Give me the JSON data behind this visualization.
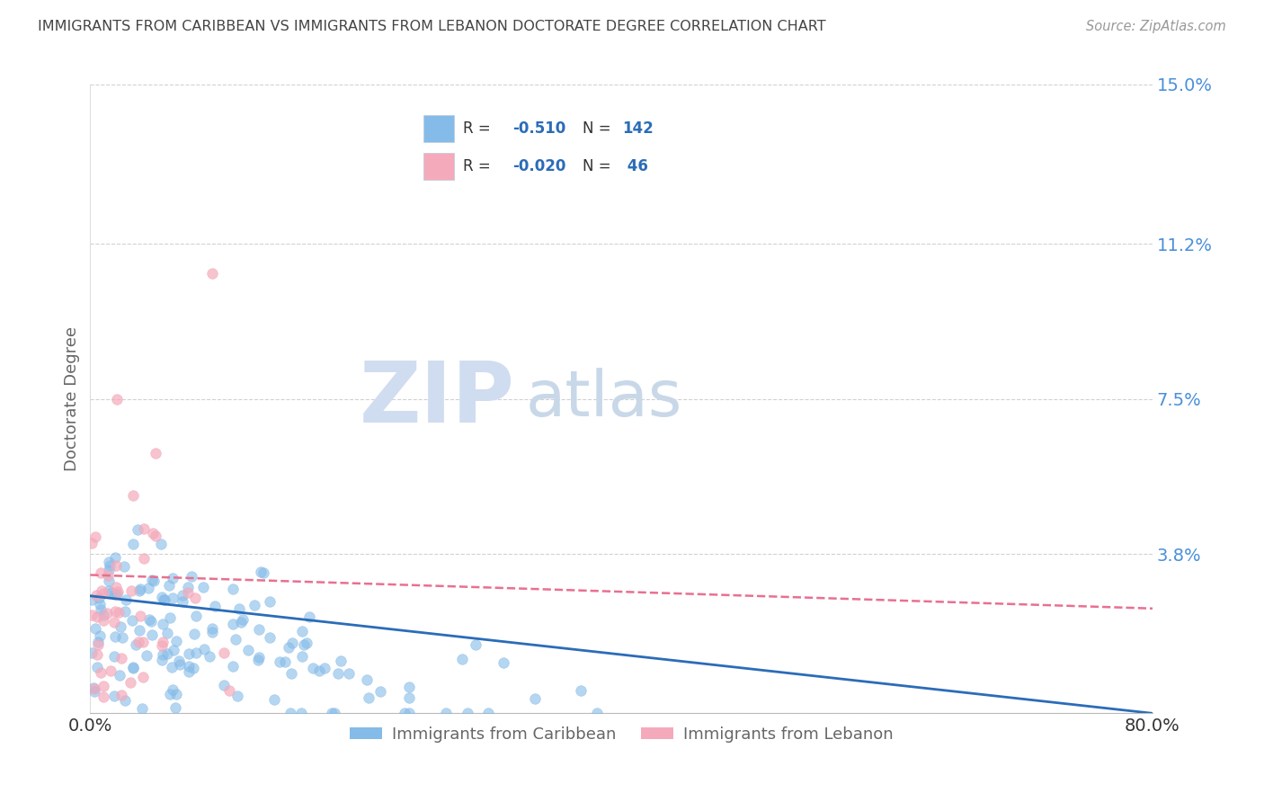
{
  "title": "IMMIGRANTS FROM CARIBBEAN VS IMMIGRANTS FROM LEBANON DOCTORATE DEGREE CORRELATION CHART",
  "source": "Source: ZipAtlas.com",
  "ylabel": "Doctorate Degree",
  "legend_label1": "Immigrants from Caribbean",
  "legend_label2": "Immigrants from Lebanon",
  "R1": -0.51,
  "N1": 142,
  "R2": -0.02,
  "N2": 46,
  "color1": "#85BBE8",
  "color2": "#F4AABB",
  "trend_color1": "#2B6CB8",
  "trend_color2": "#E87090",
  "xlim": [
    0.0,
    0.8
  ],
  "ylim": [
    0.0,
    0.15
  ],
  "xtick_left": 0.0,
  "xtick_right": 0.8,
  "yticks": [
    0.0,
    0.038,
    0.075,
    0.112,
    0.15
  ],
  "yticklabels": [
    "",
    "3.8%",
    "7.5%",
    "11.2%",
    "15.0%"
  ],
  "background_color": "#FFFFFF",
  "grid_color": "#CCCCCC",
  "watermark_zip": "ZIP",
  "watermark_atlas": "atlas",
  "watermark_color_zip": "#D0DCF0",
  "watermark_color_atlas": "#C8D8E8",
  "title_color": "#444444",
  "axis_label_color": "#666666",
  "tick_color_y": "#4A90D9",
  "tick_color_x": "#333333",
  "legend_box_color": "#F0F4FF",
  "legend_border_color": "#BBCCDD"
}
